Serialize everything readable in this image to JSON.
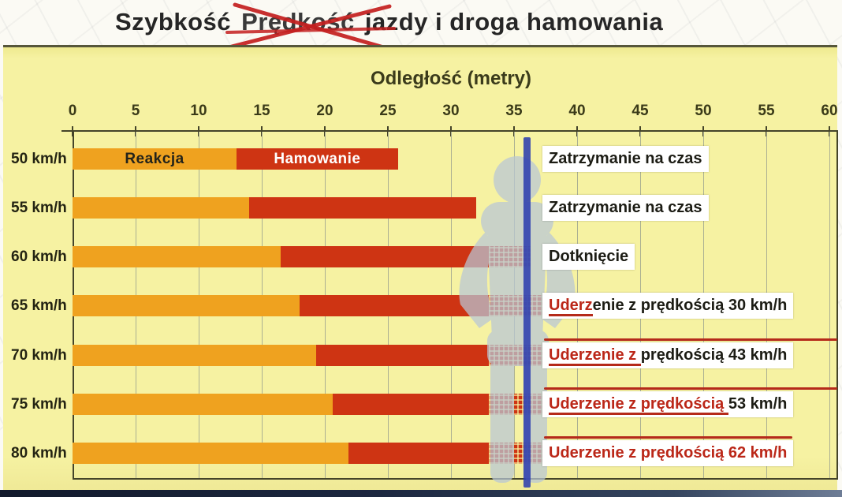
{
  "title": {
    "prefix": "Szybkość",
    "crossed_word": "Prędkość",
    "suffix": "jazdy i droga hamowania"
  },
  "chart_data": {
    "type": "bar",
    "orientation": "horizontal",
    "title": "Szybkość jazdy i droga hamowania",
    "xlabel": "Odległość (metry)",
    "xlim": [
      0,
      60
    ],
    "x_ticks": [
      0,
      5,
      10,
      15,
      20,
      25,
      30,
      35,
      40,
      45,
      50,
      55,
      60
    ],
    "grid": true,
    "legend": {
      "reaction": "Reakcja",
      "braking": "Hamowanie"
    },
    "pedestrian": {
      "position_m": 36,
      "marker": "blue-vertical-line"
    },
    "colors": {
      "reaction_bar": "#efa21f",
      "braking_bar": "#ce3413",
      "panel_background": "#f6f2a2",
      "silhouette": "#b8c7d7",
      "marker_line": "#2e3fae",
      "annotation_red": "#bb2718"
    },
    "rows": [
      {
        "speed": "50 km/h",
        "reaction_m": 13.0,
        "bar_end_m": 25.8,
        "label_red": "",
        "label_black": "Zatrzymanie na czas",
        "impact_speed_kmh": null,
        "overline": false,
        "red_underline": false
      },
      {
        "speed": "55 km/h",
        "reaction_m": 14.0,
        "bar_end_m": 32.0,
        "label_red": "",
        "label_black": "Zatrzymanie na czas",
        "impact_speed_kmh": null,
        "overline": false,
        "red_underline": false
      },
      {
        "speed": "60 km/h",
        "reaction_m": 16.5,
        "bar_end_m": 36.3,
        "label_red": "",
        "label_black": "Dotknięcie",
        "impact_speed_kmh": null,
        "overline": false,
        "red_underline": false
      },
      {
        "speed": "65 km/h",
        "reaction_m": 18.0,
        "bar_end_m": 37.5,
        "label_red": "Uderz",
        "label_black": "enie z prędkością 30 km/h",
        "impact_speed_kmh": 30,
        "overline": false,
        "red_underline": true
      },
      {
        "speed": "70 km/h",
        "reaction_m": 19.3,
        "bar_end_m": 37.5,
        "label_red": "Uderzenie z ",
        "label_black": "prędkością 43 km/h",
        "impact_speed_kmh": 43,
        "overline": true,
        "red_underline": true
      },
      {
        "speed": "75 km/h",
        "reaction_m": 20.6,
        "bar_end_m": 37.4,
        "label_red": "Uderzenie z prędkością ",
        "label_black": "53 km/h",
        "impact_speed_kmh": 53,
        "overline": true,
        "red_underline": true
      },
      {
        "speed": "80 km/h",
        "reaction_m": 21.9,
        "bar_end_m": 37.6,
        "label_red": "Uderzenie z prędkością 62 km/h",
        "label_black": "",
        "impact_speed_kmh": 62,
        "overline": true,
        "red_underline": false
      }
    ]
  }
}
